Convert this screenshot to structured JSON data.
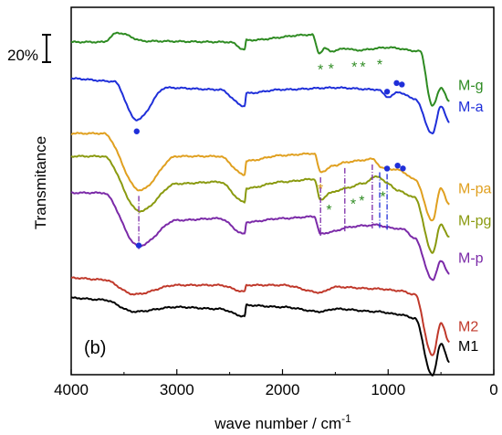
{
  "chart_data": {
    "type": "line",
    "panel_label": "(b)",
    "xlabel": "wave number / cm",
    "xlabel_sup": "-1",
    "ylabel": "Transmitance",
    "xlim": [
      4000,
      0
    ],
    "x_ticks": [
      4000,
      3000,
      2000,
      1000,
      0
    ],
    "x_tick_labels": [
      "4000",
      "3000",
      "2000",
      "1000",
      "0"
    ],
    "scale_bar_label": "20%",
    "series": [
      {
        "name": "M-g",
        "color": "#2e8b22",
        "label_color": "#2e8b22",
        "offset": 10,
        "base": [
          [
            4000,
            10
          ],
          [
            3700,
            10
          ],
          [
            3560,
            0
          ],
          [
            3300,
            9
          ],
          [
            2500,
            10
          ],
          [
            2360,
            18
          ],
          [
            2340,
            8
          ],
          [
            1720,
            2
          ],
          [
            1650,
            22
          ],
          [
            1600,
            17
          ],
          [
            1540,
            20
          ],
          [
            1400,
            17
          ],
          [
            1300,
            19
          ],
          [
            1000,
            16
          ],
          [
            700,
            20
          ],
          [
            580,
            80
          ],
          [
            500,
            60
          ],
          [
            420,
            75
          ]
        ]
      },
      {
        "name": "M-a",
        "color": "#1f2fd9",
        "label_color": "#1f2fd9",
        "offset": 60,
        "base": [
          [
            4000,
            0
          ],
          [
            3600,
            3
          ],
          [
            3380,
            45
          ],
          [
            3100,
            10
          ],
          [
            2600,
            12
          ],
          [
            2360,
            30
          ],
          [
            2340,
            16
          ],
          [
            2000,
            12
          ],
          [
            1500,
            10
          ],
          [
            1100,
            12
          ],
          [
            1000,
            20
          ],
          [
            900,
            15
          ],
          [
            750,
            22
          ],
          [
            580,
            60
          ],
          [
            500,
            30
          ],
          [
            420,
            48
          ]
        ]
      },
      {
        "name": "M-pa",
        "color": "#e0a020",
        "label_color": "#e0a020",
        "offset": 120,
        "base": [
          [
            4000,
            0
          ],
          [
            3700,
            0
          ],
          [
            3350,
            62
          ],
          [
            3000,
            25
          ],
          [
            2600,
            25
          ],
          [
            2360,
            45
          ],
          [
            2340,
            30
          ],
          [
            2000,
            24
          ],
          [
            1700,
            22
          ],
          [
            1640,
            42
          ],
          [
            1500,
            35
          ],
          [
            1420,
            32
          ],
          [
            1300,
            30
          ],
          [
            1150,
            28
          ],
          [
            1050,
            38
          ],
          [
            900,
            40
          ],
          [
            750,
            50
          ],
          [
            580,
            95
          ],
          [
            500,
            60
          ],
          [
            420,
            78
          ]
        ]
      },
      {
        "name": "M-pg",
        "color": "#8a9a10",
        "label_color": "#8a9a10",
        "offset": 145,
        "base": [
          [
            4000,
            0
          ],
          [
            3700,
            0
          ],
          [
            3350,
            60
          ],
          [
            3000,
            30
          ],
          [
            2600,
            28
          ],
          [
            2360,
            50
          ],
          [
            2340,
            35
          ],
          [
            2000,
            28
          ],
          [
            1700,
            25
          ],
          [
            1640,
            48
          ],
          [
            1550,
            40
          ],
          [
            1400,
            35
          ],
          [
            1250,
            30
          ],
          [
            1100,
            22
          ],
          [
            1000,
            30
          ],
          [
            900,
            38
          ],
          [
            750,
            45
          ],
          [
            580,
            105
          ],
          [
            500,
            75
          ],
          [
            420,
            88
          ]
        ]
      },
      {
        "name": "M-p",
        "color": "#7b2aa8",
        "label_color": "#7b2aa8",
        "offset": 185,
        "base": [
          [
            4000,
            0
          ],
          [
            3700,
            0
          ],
          [
            3360,
            58
          ],
          [
            3000,
            30
          ],
          [
            2600,
            28
          ],
          [
            2360,
            45
          ],
          [
            2340,
            32
          ],
          [
            2000,
            28
          ],
          [
            1700,
            26
          ],
          [
            1640,
            45
          ],
          [
            1500,
            42
          ],
          [
            1400,
            38
          ],
          [
            1250,
            36
          ],
          [
            1100,
            35
          ],
          [
            1000,
            38
          ],
          [
            850,
            40
          ],
          [
            750,
            50
          ],
          [
            580,
            95
          ],
          [
            500,
            75
          ],
          [
            420,
            88
          ]
        ]
      },
      {
        "name": "M2",
        "color": "#c0392b",
        "label_color": "#c0392b",
        "offset": 278,
        "base": [
          [
            4000,
            0
          ],
          [
            3700,
            2
          ],
          [
            3400,
            18
          ],
          [
            3000,
            8
          ],
          [
            2600,
            8
          ],
          [
            2360,
            15
          ],
          [
            2340,
            8
          ],
          [
            2000,
            8
          ],
          [
            1640,
            16
          ],
          [
            1500,
            10
          ],
          [
            1100,
            12
          ],
          [
            900,
            14
          ],
          [
            750,
            18
          ],
          [
            580,
            85
          ],
          [
            500,
            50
          ],
          [
            420,
            70
          ]
        ]
      },
      {
        "name": "M1",
        "color": "#000000",
        "label_color": "#000000",
        "offset": 300,
        "base": [
          [
            4000,
            0
          ],
          [
            3700,
            2
          ],
          [
            3400,
            15
          ],
          [
            3000,
            10
          ],
          [
            2600,
            12
          ],
          [
            2360,
            20
          ],
          [
            2340,
            8
          ],
          [
            2000,
            10
          ],
          [
            1640,
            15
          ],
          [
            1500,
            12
          ],
          [
            1100,
            15
          ],
          [
            900,
            18
          ],
          [
            750,
            22
          ],
          [
            580,
            85
          ],
          [
            500,
            50
          ],
          [
            420,
            70
          ]
        ]
      }
    ],
    "markers": [
      {
        "type": "dot",
        "color": "#1f2fd9",
        "series": "M-a",
        "x": 3380,
        "dy": 12
      },
      {
        "type": "dot",
        "color": "#1f2fd9",
        "series": "M-a",
        "x": 1010,
        "dy": -6
      },
      {
        "type": "dot",
        "color": "#1f2fd9",
        "series": "M-a",
        "x": 920,
        "dy": -10
      },
      {
        "type": "dot",
        "color": "#1f2fd9",
        "series": "M-a",
        "x": 870,
        "dy": -10
      },
      {
        "type": "dot",
        "color": "#1f2fd9",
        "series": "M-p",
        "x": 3360,
        "dy": 0
      },
      {
        "type": "dot",
        "color": "#1f2fd9",
        "series": "M-pa",
        "x": 1010,
        "dy": 0
      },
      {
        "type": "dot",
        "color": "#1f2fd9",
        "series": "M-pa",
        "x": 910,
        "dy": -4
      },
      {
        "type": "dot",
        "color": "#1f2fd9",
        "series": "M-pa",
        "x": 860,
        "dy": -4
      },
      {
        "type": "star",
        "color": "#2e8b22",
        "series": "M-g",
        "x": 1640
      },
      {
        "type": "star",
        "color": "#2e8b22",
        "series": "M-g",
        "x": 1540
      },
      {
        "type": "star",
        "color": "#2e8b22",
        "series": "M-g",
        "x": 1320
      },
      {
        "type": "star",
        "color": "#2e8b22",
        "series": "M-g",
        "x": 1240
      },
      {
        "type": "star",
        "color": "#2e8b22",
        "series": "M-g",
        "x": 1080
      },
      {
        "type": "star",
        "color": "#2e8b22",
        "series": "M-pg",
        "x": 1560
      },
      {
        "type": "star",
        "color": "#2e8b22",
        "series": "M-pg",
        "x": 1330
      },
      {
        "type": "star",
        "color": "#2e8b22",
        "series": "M-pg",
        "x": 1250
      },
      {
        "type": "star",
        "color": "#2e8b22",
        "series": "M-pg",
        "x": 1050
      },
      {
        "type": "star",
        "color": "#e0a020",
        "series": "M-pa",
        "x": 1640
      }
    ],
    "guides": [
      {
        "color": "#7b2aa8",
        "x": 3360
      },
      {
        "color": "#7b2aa8",
        "x": 1640
      },
      {
        "color": "#7b2aa8",
        "x": 1410
      },
      {
        "color": "#7b2aa8",
        "x": 1150
      },
      {
        "color": "#1f2fd9",
        "x": 1080
      },
      {
        "color": "#1f2fd9",
        "x": 1010
      }
    ]
  }
}
